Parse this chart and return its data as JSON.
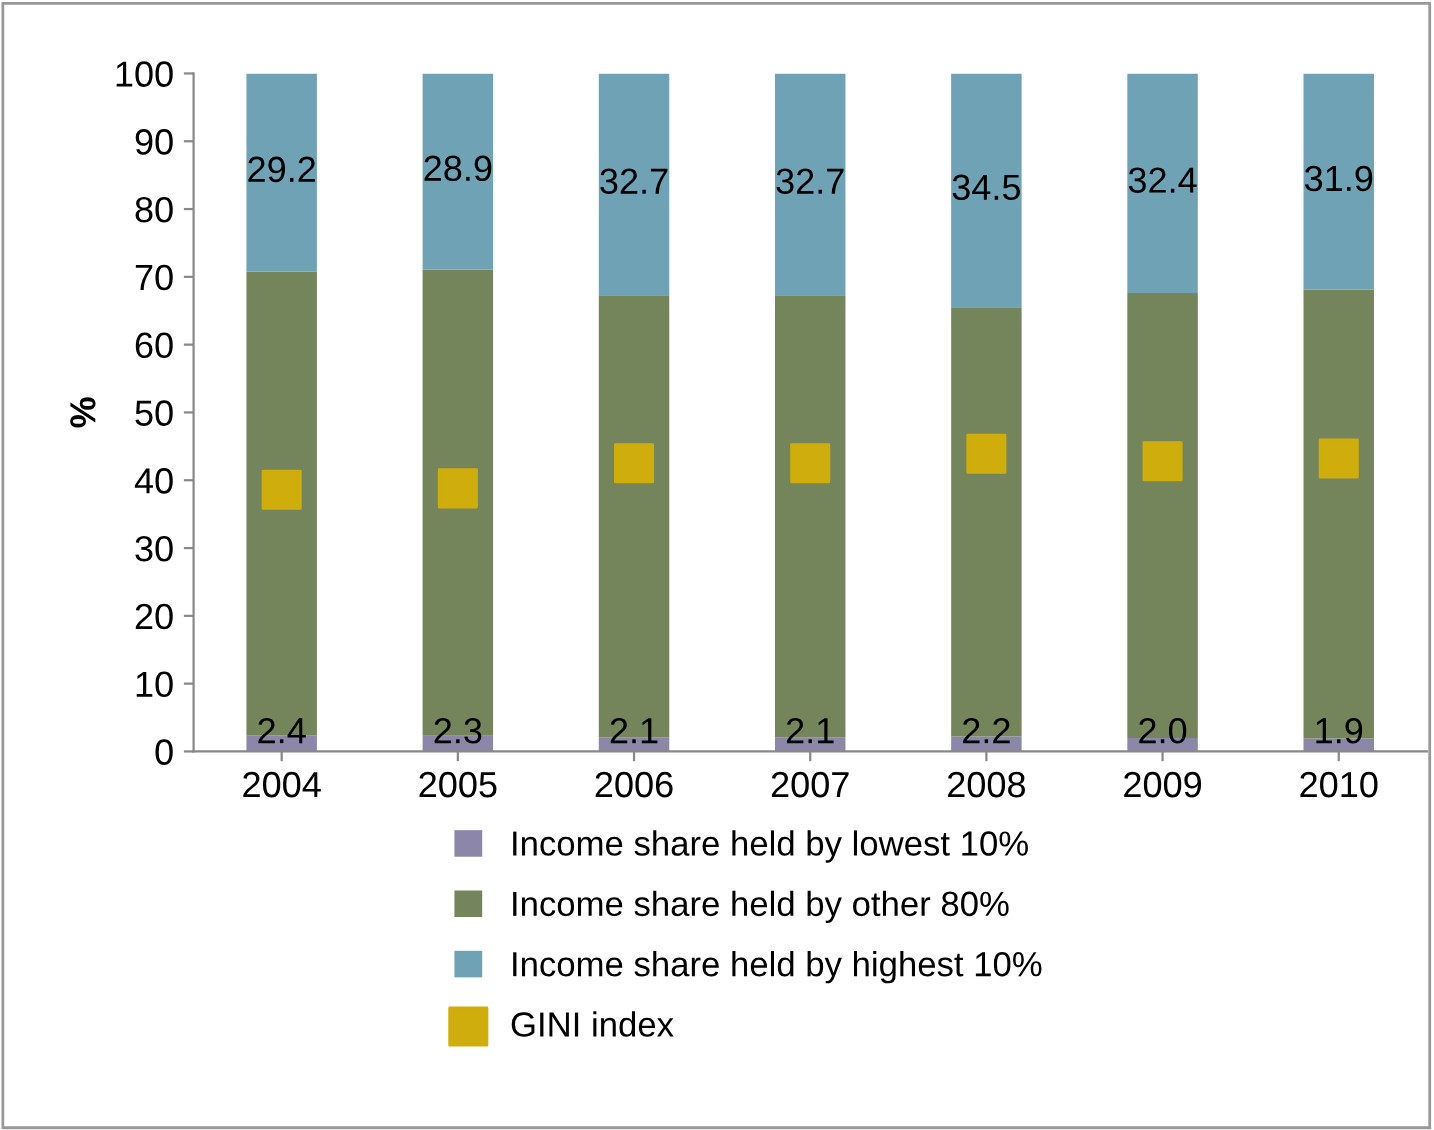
{
  "chart_data": {
    "type": "bar",
    "stacked": true,
    "ylabel": "%",
    "categories": [
      "2004",
      "2005",
      "2006",
      "2007",
      "2008",
      "2009",
      "2010"
    ],
    "series": [
      {
        "name": "Income share held by lowest 10%",
        "color": "#8c86a8",
        "values": [
          2.4,
          2.3,
          2.1,
          2.1,
          2.2,
          2.0,
          1.9
        ],
        "value_labels": [
          "2.4",
          "2.3",
          "2.1",
          "2.1",
          "2.2",
          "2.0",
          "1.9"
        ]
      },
      {
        "name": "Income share held by other 80%",
        "color": "#74855c",
        "values": [
          68.4,
          68.8,
          65.2,
          65.2,
          63.3,
          65.6,
          66.2
        ]
      },
      {
        "name": "Income share held by highest 10%",
        "color": "#6fa2b4",
        "values": [
          29.2,
          28.9,
          32.7,
          32.7,
          34.5,
          32.4,
          31.9
        ],
        "value_labels": [
          "29.2",
          "28.9",
          "32.7",
          "32.7",
          "34.5",
          "32.4",
          "31.9"
        ]
      },
      {
        "name": "GINI index",
        "type": "scatter",
        "color": "#cfad0c",
        "marker": "square",
        "values": [
          38.6,
          38.8,
          42.5,
          42.5,
          43.9,
          42.8,
          43.2
        ]
      }
    ],
    "ylim": [
      0,
      100
    ],
    "yticks": [
      0,
      10,
      20,
      30,
      40,
      50,
      60,
      70,
      80,
      90,
      100
    ],
    "grid": false,
    "legend": "bottom"
  }
}
